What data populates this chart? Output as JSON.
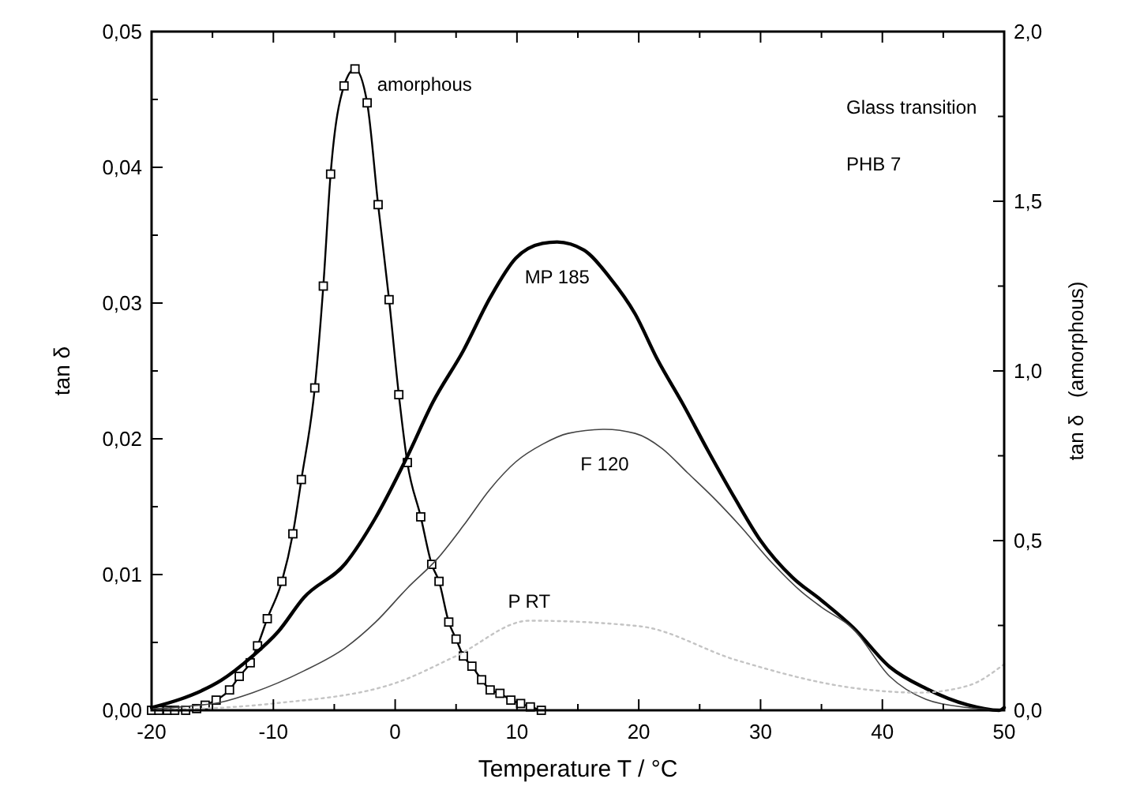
{
  "chart_data": {
    "type": "line",
    "xlabel": "Temperature T / °C",
    "ylabel": "tan δ",
    "y2label": "tan δ   (amorphous)",
    "xlim": [
      -20,
      50
    ],
    "xticks": [
      {
        "value": -20,
        "label": "-20"
      },
      {
        "value": -15,
        "label": null
      },
      {
        "value": -10,
        "label": "-10"
      },
      {
        "value": -5,
        "label": null
      },
      {
        "value": 0,
        "label": "0"
      },
      {
        "value": 5,
        "label": null
      },
      {
        "value": 10,
        "label": "10"
      },
      {
        "value": 15,
        "label": null
      },
      {
        "value": 20,
        "label": "20"
      },
      {
        "value": 25,
        "label": null
      },
      {
        "value": 30,
        "label": "30"
      },
      {
        "value": 35,
        "label": null
      },
      {
        "value": 40,
        "label": "40"
      },
      {
        "value": 45,
        "label": null
      },
      {
        "value": 50,
        "label": "50"
      }
    ],
    "ylim": [
      0,
      0.05
    ],
    "yticks": [
      {
        "value": 0,
        "label": "0,00"
      },
      {
        "value": 0.005,
        "label": null
      },
      {
        "value": 0.01,
        "label": "0,01"
      },
      {
        "value": 0.015,
        "label": null
      },
      {
        "value": 0.02,
        "label": "0,02"
      },
      {
        "value": 0.025,
        "label": null
      },
      {
        "value": 0.03,
        "label": "0,03"
      },
      {
        "value": 0.035,
        "label": null
      },
      {
        "value": 0.04,
        "label": "0,04"
      },
      {
        "value": 0.045,
        "label": null
      },
      {
        "value": 0.05,
        "label": "0,05"
      }
    ],
    "y2lim": [
      0,
      2
    ],
    "y2ticks": [
      {
        "value": 0,
        "label": "0,0"
      },
      {
        "value": 0.25,
        "label": null
      },
      {
        "value": 0.5,
        "label": "0,5"
      },
      {
        "value": 0.75,
        "label": null
      },
      {
        "value": 1,
        "label": "1,0"
      },
      {
        "value": 1.25,
        "label": null
      },
      {
        "value": 1.5,
        "label": "1,5"
      },
      {
        "value": 1.75,
        "label": null
      },
      {
        "value": 2,
        "label": "2,0"
      }
    ],
    "grid": false,
    "annotations": [
      "Glass transition",
      "PHB 7"
    ],
    "series": [
      {
        "name": "amorphous",
        "color": "#000000",
        "axis": "y2",
        "marker": "square",
        "line_style": "solid",
        "x": [
          -20,
          -19.4,
          -18.7,
          -18.1,
          -17.2,
          -16.3,
          -15.6,
          -14.7,
          -13.6,
          -12.8,
          -11.9,
          -11.3,
          -10.5,
          -9.3,
          -8.4,
          -7.7,
          -6.6,
          -5.9,
          -5.3,
          -4.2,
          -3.3,
          -2.3,
          -1.4,
          -0.5,
          0.3,
          1,
          2.1,
          3,
          3.6,
          4.4,
          5,
          5.6,
          6.3,
          7.1,
          7.8,
          8.6,
          9.5,
          10.3,
          11.1,
          12
        ],
        "values": [
          0,
          0,
          0,
          0,
          0,
          0.005,
          0.015,
          0.03,
          0.06,
          0.1,
          0.14,
          0.19,
          0.27,
          0.38,
          0.52,
          0.68,
          0.95,
          1.25,
          1.58,
          1.84,
          1.89,
          1.79,
          1.49,
          1.21,
          0.93,
          0.73,
          0.57,
          0.43,
          0.38,
          0.26,
          0.21,
          0.16,
          0.13,
          0.09,
          0.06,
          0.05,
          0.03,
          0.02,
          0.01,
          0
        ]
      },
      {
        "name": "MP 185",
        "color": "#000000",
        "marker": "none",
        "line_style": "solid",
        "x": [
          -20,
          -17.7,
          -16,
          -14.3,
          -11.7,
          -9.6,
          -7.5,
          -4.1,
          -1.6,
          1,
          3.1,
          5.6,
          7.8,
          9.9,
          12.1,
          13.3,
          15.5,
          17.6,
          19.7,
          21.5,
          23.6,
          25.7,
          27.9,
          30,
          32.6,
          35,
          37.6,
          40.6,
          43.6,
          47,
          49.6,
          50
        ],
        "values": [
          0.0002,
          0.0008,
          0.0014,
          0.0022,
          0.004,
          0.0058,
          0.0083,
          0.0108,
          0.0142,
          0.0187,
          0.0227,
          0.0265,
          0.0304,
          0.0333,
          0.0344,
          0.0345,
          0.0339,
          0.0319,
          0.0292,
          0.0259,
          0.0226,
          0.0191,
          0.0156,
          0.0125,
          0.0098,
          0.0081,
          0.0061,
          0.0032,
          0.0016,
          0.0004,
          0,
          0.0002
        ]
      },
      {
        "name": "F 120",
        "color": "#444444",
        "marker": "none",
        "line_style": "solid",
        "x": [
          -20,
          -17,
          -14.3,
          -11.7,
          -7.5,
          -4.1,
          -1.6,
          1,
          3.5,
          5.6,
          7.8,
          9.9,
          12.1,
          14.2,
          17.2,
          19.7,
          21.9,
          24,
          26.2,
          28.3,
          30.9,
          33.4,
          35,
          37.6,
          40.6,
          43.6,
          47,
          50
        ],
        "values": [
          0.0001,
          0.0003,
          0.0006,
          0.0013,
          0.0029,
          0.0046,
          0.0065,
          0.009,
          0.0112,
          0.0136,
          0.0163,
          0.0183,
          0.0196,
          0.0204,
          0.0207,
          0.0204,
          0.0193,
          0.0175,
          0.0156,
          0.0136,
          0.0109,
          0.0087,
          0.0076,
          0.006,
          0.0025,
          0.0008,
          0.0002,
          0
        ]
      },
      {
        "name": "P RT",
        "color": "#c4c4c4",
        "marker": "none",
        "line_style": "dotted",
        "x": [
          -20,
          -10,
          0,
          5,
          11,
          20,
          28,
          38,
          43,
          47,
          50
        ],
        "values": [
          0,
          0.0005,
          0.002,
          0.004,
          0.0066,
          0.0062,
          0.0037,
          0.0016,
          0.0013,
          0.0018,
          0.0034
        ]
      }
    ]
  }
}
